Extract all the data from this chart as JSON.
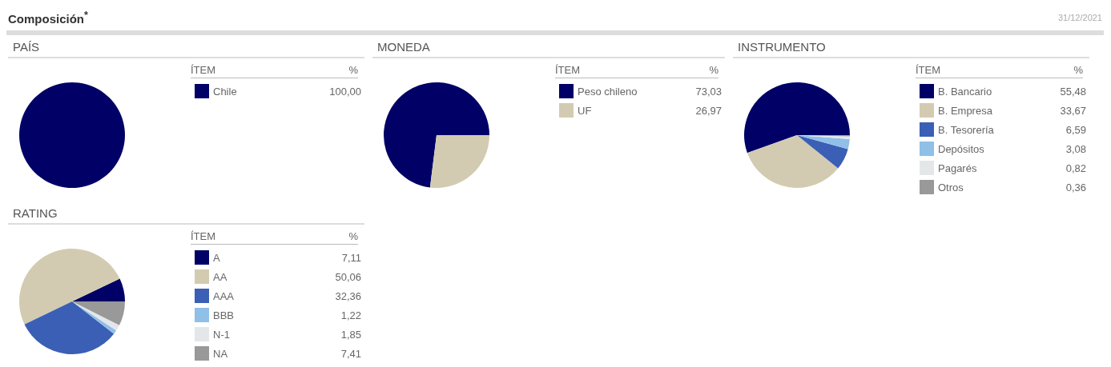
{
  "chart_data": [
    {
      "type": "other",
      "title": "Composición$^{*}$",
      "annotations": [
        "31/12/2021"
      ]
    },
    {
      "type": "pie",
      "title": "PAÍS",
      "legend_title": "ÍTEM",
      "annotations": [
        "%"
      ],
      "legend": "right",
      "categories": [
        "Chile"
      ],
      "values": [
        100
      ],
      "value_labels": [
        "100,00"
      ],
      "colors": [
        "#000066"
      ]
    },
    {
      "type": "pie",
      "title": "MONEDA",
      "legend_title": "ÍTEM",
      "annotations": [
        "%"
      ],
      "legend": "right",
      "categories": [
        "Peso chileno",
        "UF"
      ],
      "values": [
        73.03,
        26.97
      ],
      "value_labels": [
        "73,03",
        "26,97"
      ],
      "colors": [
        "#000066",
        "#d3cbb1"
      ]
    },
    {
      "type": "pie",
      "title": "INSTRUMENTO",
      "legend_title": "ÍTEM",
      "annotations": [
        "%"
      ],
      "legend": "right",
      "categories": [
        "B. Bancario",
        "B. Empresa",
        "B. Tesorería",
        "Depósitos",
        "Pagarés",
        "Otros"
      ],
      "values": [
        55.48,
        33.67,
        6.59,
        3.08,
        0.82,
        0.36
      ],
      "value_labels": [
        "55,48",
        "33,67",
        "6,59",
        "3,08",
        "0,82",
        "0,36"
      ],
      "colors": [
        "#000066",
        "#d3cbb1",
        "#3a5fb5",
        "#90bfe8",
        "#e3e7ea",
        "#999999"
      ]
    },
    {
      "type": "pie",
      "title": "RATING",
      "legend_title": "ÍTEM",
      "annotations": [
        "%"
      ],
      "legend": "right",
      "categories": [
        "A",
        "AA",
        "AAA",
        "BBB",
        "N-1",
        "NA"
      ],
      "values": [
        7.11,
        50.06,
        32.36,
        1.22,
        1.85,
        7.41
      ],
      "value_labels": [
        "7,11",
        "50,06",
        "32,36",
        "1,22",
        "1,85",
        "7,41"
      ],
      "colors": [
        "#000066",
        "#d3cbb1",
        "#3a5fb5",
        "#90bfe8",
        "#e3e7ea",
        "#999999"
      ]
    }
  ]
}
